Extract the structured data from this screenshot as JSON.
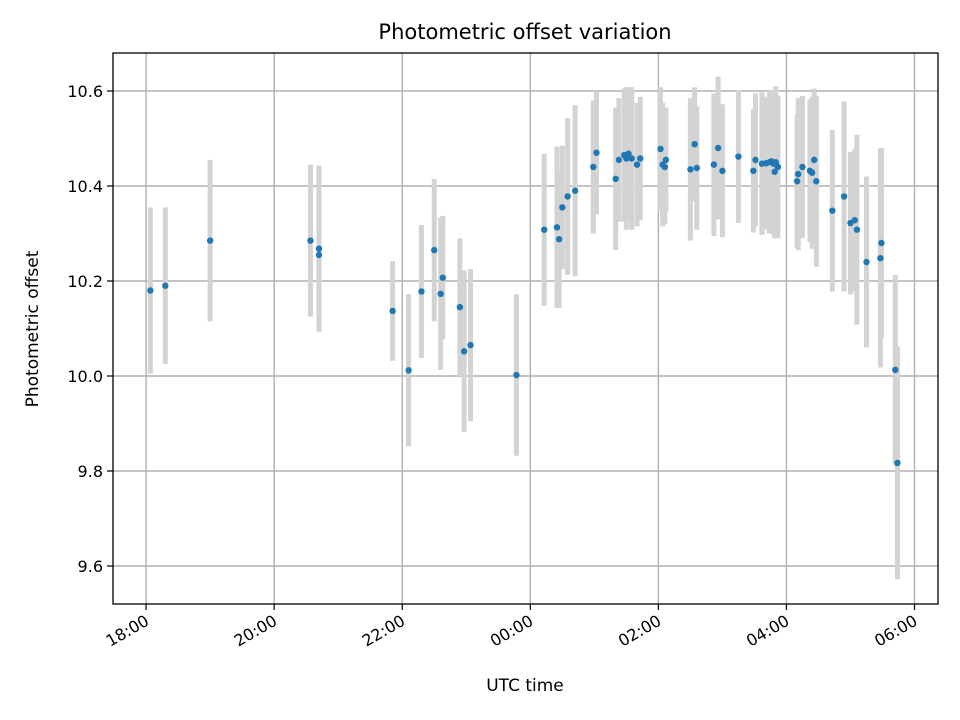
{
  "chart_data": {
    "type": "scatter",
    "title": "Photometric offset variation",
    "xlabel": "UTC time",
    "ylabel": "Photometric offset",
    "x_ticks": [
      "18:00",
      "20:00",
      "22:00",
      "00:00",
      "02:00",
      "04:00",
      "06:00"
    ],
    "y_ticks": [
      "9.6",
      "9.8",
      "10.0",
      "10.2",
      "10.4",
      "10.6"
    ],
    "xlim": [
      "17:29",
      "06:22"
    ],
    "ylim": [
      9.52,
      10.68
    ],
    "grid": true,
    "colors": {
      "marker": "#1f77b4",
      "errorbar": "#d3d3d3"
    },
    "series": [
      {
        "x": [
          "18:04",
          "18:18",
          "19:00",
          "20:34",
          "20:42",
          "20:42",
          "21:51",
          "22:06",
          "22:18",
          "22:30",
          "22:36",
          "22:38",
          "22:54",
          "22:58",
          "23:04",
          "23:47",
          "00:13",
          "00:25",
          "00:27",
          "00:30",
          "00:35",
          "00:42",
          "00:59",
          "01:02",
          "01:20",
          "01:23",
          "01:28",
          "01:30",
          "01:32",
          "01:35",
          "01:40",
          "01:43",
          "02:02",
          "02:04",
          "02:06",
          "02:07",
          "02:30",
          "02:34",
          "02:36",
          "02:52",
          "02:56",
          "03:00",
          "03:15",
          "03:29",
          "03:31",
          "03:37",
          "03:41",
          "03:44",
          "03:46",
          "03:48",
          "03:49",
          "03:50",
          "03:52",
          "04:10",
          "04:11",
          "04:15",
          "04:22",
          "04:24",
          "04:26",
          "04:28",
          "04:43",
          "04:54",
          "05:00",
          "05:04",
          "05:06",
          "05:15",
          "05:28",
          "05:29",
          "05:42",
          "05:44"
        ],
        "y": [
          10.18,
          10.19,
          10.285,
          10.285,
          10.268,
          10.255,
          10.137,
          10.012,
          10.178,
          10.265,
          10.173,
          10.207,
          10.145,
          10.052,
          10.065,
          10.002,
          10.308,
          10.313,
          10.288,
          10.355,
          10.378,
          10.39,
          10.44,
          10.47,
          10.415,
          10.455,
          10.465,
          10.458,
          10.468,
          10.458,
          10.445,
          10.458,
          10.478,
          10.445,
          10.44,
          10.455,
          10.435,
          10.488,
          10.438,
          10.445,
          10.48,
          10.432,
          10.462,
          10.432,
          10.455,
          10.447,
          10.448,
          10.45,
          10.452,
          10.447,
          10.43,
          10.45,
          10.44,
          10.41,
          10.425,
          10.44,
          10.432,
          10.428,
          10.455,
          10.41,
          10.348,
          10.378,
          10.322,
          10.328,
          10.308,
          10.24,
          10.248,
          10.28,
          10.013,
          9.817
        ],
        "yerr": [
          0.175,
          0.165,
          0.17,
          0.16,
          0.175,
          0.16,
          0.105,
          0.16,
          0.14,
          0.15,
          0.16,
          0.13,
          0.145,
          0.17,
          0.16,
          0.17,
          0.16,
          0.17,
          0.145,
          0.13,
          0.165,
          0.18,
          0.14,
          0.13,
          0.15,
          0.13,
          0.14,
          0.15,
          0.14,
          0.15,
          0.13,
          0.13,
          0.13,
          0.13,
          0.12,
          0.11,
          0.15,
          0.12,
          0.13,
          0.15,
          0.15,
          0.14,
          0.14,
          0.13,
          0.14,
          0.15,
          0.14,
          0.15,
          0.15,
          0.15,
          0.14,
          0.16,
          0.15,
          0.14,
          0.16,
          0.15,
          0.15,
          0.16,
          0.15,
          0.18,
          0.17,
          0.2,
          0.15,
          0.15,
          0.2,
          0.18,
          0.23,
          0.2,
          0.2,
          0.245
        ]
      }
    ]
  }
}
